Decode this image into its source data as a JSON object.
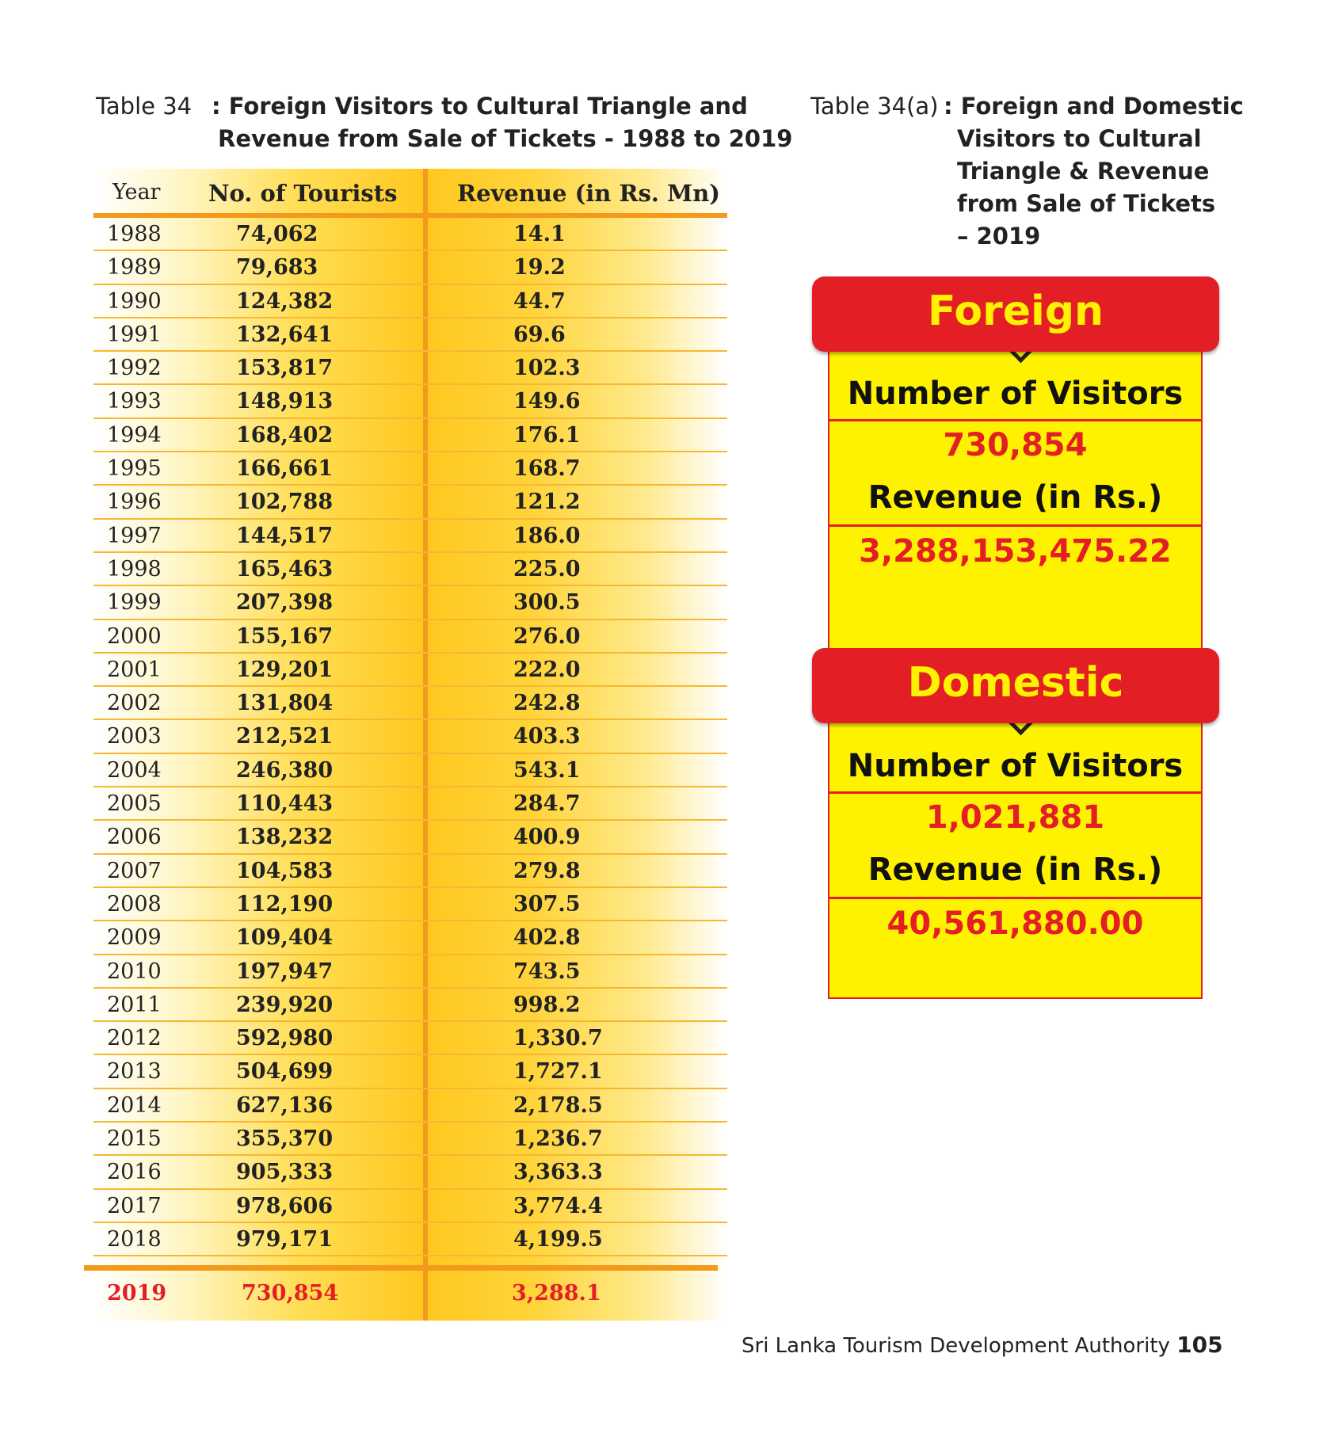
{
  "table34": {
    "label": "Table 34",
    "title_line1": ": Foreign Visitors to Cultural Triangle and",
    "title_line2": "Revenue from Sale of Tickets - 1988 to 2019",
    "headers": {
      "year": "Year",
      "tourists": "No. of Tourists",
      "revenue": "Revenue (in Rs. Mn)"
    },
    "rows": [
      {
        "year": "1988",
        "tourists": "74,062",
        "revenue": "14.1"
      },
      {
        "year": "1989",
        "tourists": "79,683",
        "revenue": "19.2"
      },
      {
        "year": "1990",
        "tourists": "124,382",
        "revenue": "44.7"
      },
      {
        "year": "1991",
        "tourists": "132,641",
        "revenue": "69.6"
      },
      {
        "year": "1992",
        "tourists": "153,817",
        "revenue": "102.3"
      },
      {
        "year": "1993",
        "tourists": "148,913",
        "revenue": "149.6"
      },
      {
        "year": "1994",
        "tourists": "168,402",
        "revenue": "176.1"
      },
      {
        "year": "1995",
        "tourists": "166,661",
        "revenue": "168.7"
      },
      {
        "year": "1996",
        "tourists": "102,788",
        "revenue": "121.2"
      },
      {
        "year": "1997",
        "tourists": "144,517",
        "revenue": "186.0"
      },
      {
        "year": "1998",
        "tourists": "165,463",
        "revenue": "225.0"
      },
      {
        "year": "1999",
        "tourists": "207,398",
        "revenue": "300.5"
      },
      {
        "year": "2000",
        "tourists": "155,167",
        "revenue": "276.0"
      },
      {
        "year": "2001",
        "tourists": "129,201",
        "revenue": "222.0"
      },
      {
        "year": "2002",
        "tourists": "131,804",
        "revenue": "242.8"
      },
      {
        "year": "2003",
        "tourists": "212,521",
        "revenue": "403.3"
      },
      {
        "year": "2004",
        "tourists": "246,380",
        "revenue": "543.1"
      },
      {
        "year": "2005",
        "tourists": "110,443",
        "revenue": "284.7"
      },
      {
        "year": "2006",
        "tourists": "138,232",
        "revenue": "400.9"
      },
      {
        "year": "2007",
        "tourists": "104,583",
        "revenue": "279.8"
      },
      {
        "year": "2008",
        "tourists": "112,190",
        "revenue": "307.5"
      },
      {
        "year": "2009",
        "tourists": "109,404",
        "revenue": "402.8"
      },
      {
        "year": "2010",
        "tourists": "197,947",
        "revenue": "743.5"
      },
      {
        "year": "2011",
        "tourists": "239,920",
        "revenue": "998.2"
      },
      {
        "year": "2012",
        "tourists": "592,980",
        "revenue": "1,330.7"
      },
      {
        "year": "2013",
        "tourists": "504,699",
        "revenue": "1,727.1"
      },
      {
        "year": "2014",
        "tourists": "627,136",
        "revenue": "2,178.5"
      },
      {
        "year": "2015",
        "tourists": "355,370",
        "revenue": "1,236.7"
      },
      {
        "year": "2016",
        "tourists": "905,333",
        "revenue": "3,363.3"
      },
      {
        "year": "2017",
        "tourists": "978,606",
        "revenue": "3,774.4"
      },
      {
        "year": "2018",
        "tourists": "979,171",
        "revenue": "4,199.5"
      }
    ],
    "highlight_row": {
      "year": "2019",
      "tourists": "730,854",
      "revenue": "3,288.1"
    }
  },
  "table34a": {
    "label": "Table 34(a)",
    "title_lines": [
      ": Foreign and Domestic",
      "Visitors to Cultural",
      "Triangle & Revenue",
      "from Sale of Tickets",
      "– 2019"
    ],
    "foreign": {
      "heading": "Foreign",
      "visitors_label": "Number of Visitors",
      "visitors_value": "730,854",
      "revenue_label": "Revenue (in Rs.)",
      "revenue_value": "3,288,153,475.22"
    },
    "domestic": {
      "heading": "Domestic",
      "visitors_label": "Number of Visitors",
      "visitors_value": "1,021,881",
      "revenue_label": "Revenue (in Rs.)",
      "revenue_value": "40,561,880.00"
    }
  },
  "footer": {
    "text": "Sri Lanka Tourism Development Authority",
    "page_number": "105"
  },
  "colors": {
    "accent_orange": "#f39a1c",
    "highlight_red": "#e31e24",
    "box_yellow": "#fff200"
  }
}
